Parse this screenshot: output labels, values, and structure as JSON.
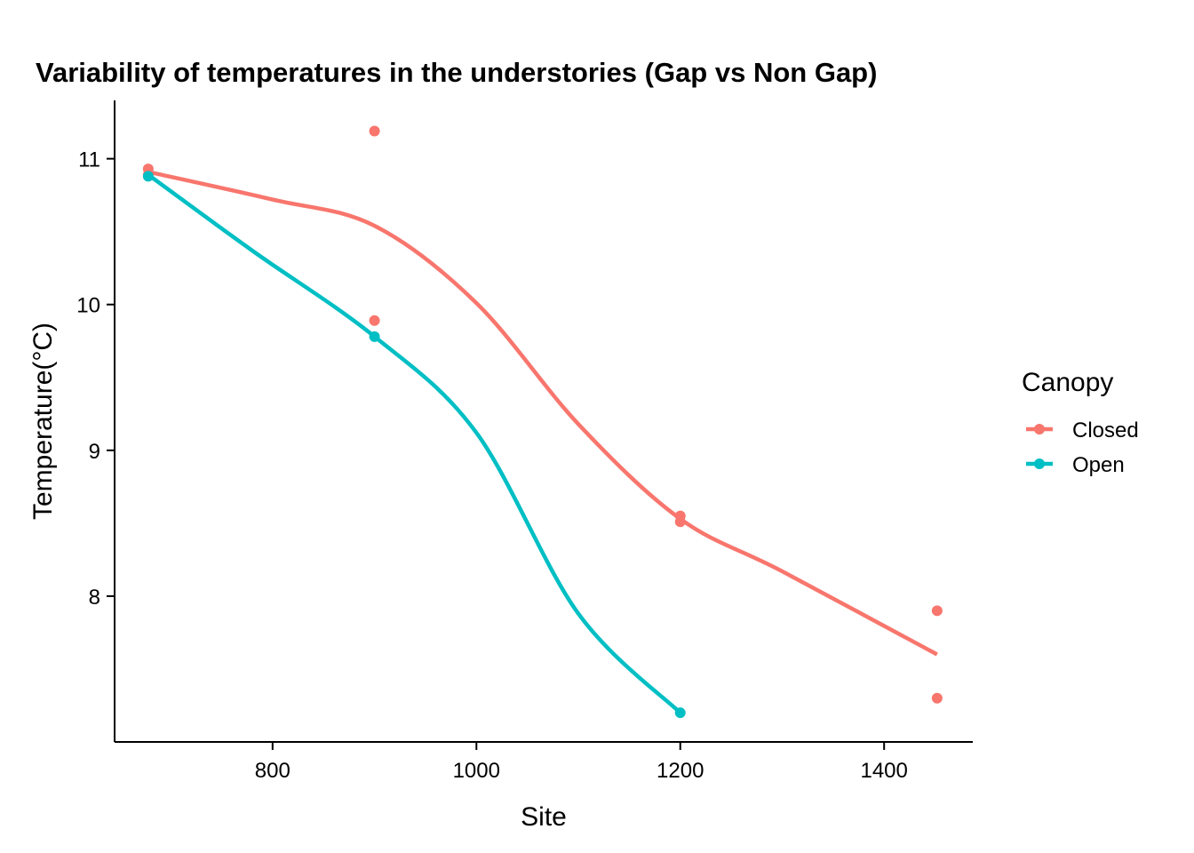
{
  "chart_data": {
    "type": "line",
    "title": "Variability of temperatures in the understories (Gap vs Non Gap)",
    "xlabel": "Site",
    "ylabel": "Temperature(°C)",
    "xlim": [
      645,
      1487
    ],
    "ylim": [
      7.0,
      11.4
    ],
    "xticks": [
      800,
      1000,
      1200,
      1400
    ],
    "xtick_labels": [
      "800",
      "1000",
      "1200",
      "1400"
    ],
    "yticks": [
      8,
      9,
      10,
      11
    ],
    "ytick_labels": [
      "8",
      "9",
      "10",
      "11"
    ],
    "grid": false,
    "legend": {
      "title": "Canopy",
      "position": "right"
    },
    "series": [
      {
        "name": "Closed",
        "color": "#F8766D",
        "points": [
          {
            "x": 678,
            "y": 10.93
          },
          {
            "x": 678,
            "y": 10.89
          },
          {
            "x": 900,
            "y": 11.19
          },
          {
            "x": 900,
            "y": 9.89
          },
          {
            "x": 1200,
            "y": 8.55
          },
          {
            "x": 1200,
            "y": 8.51
          },
          {
            "x": 1452,
            "y": 7.9
          },
          {
            "x": 1452,
            "y": 7.3
          }
        ],
        "smooth": [
          {
            "x": 678,
            "y": 10.91
          },
          {
            "x": 800,
            "y": 10.72
          },
          {
            "x": 900,
            "y": 10.54
          },
          {
            "x": 1000,
            "y": 10.01
          },
          {
            "x": 1100,
            "y": 9.18
          },
          {
            "x": 1200,
            "y": 8.53
          },
          {
            "x": 1300,
            "y": 8.17
          },
          {
            "x": 1452,
            "y": 7.6
          }
        ]
      },
      {
        "name": "Open",
        "color": "#00BFC4",
        "points": [
          {
            "x": 678,
            "y": 10.88
          },
          {
            "x": 900,
            "y": 9.78
          },
          {
            "x": 1200,
            "y": 7.2
          }
        ],
        "smooth": [
          {
            "x": 678,
            "y": 10.89
          },
          {
            "x": 780,
            "y": 10.37
          },
          {
            "x": 900,
            "y": 9.78
          },
          {
            "x": 1000,
            "y": 9.12
          },
          {
            "x": 1100,
            "y": 7.88
          },
          {
            "x": 1200,
            "y": 7.2
          }
        ]
      }
    ]
  }
}
